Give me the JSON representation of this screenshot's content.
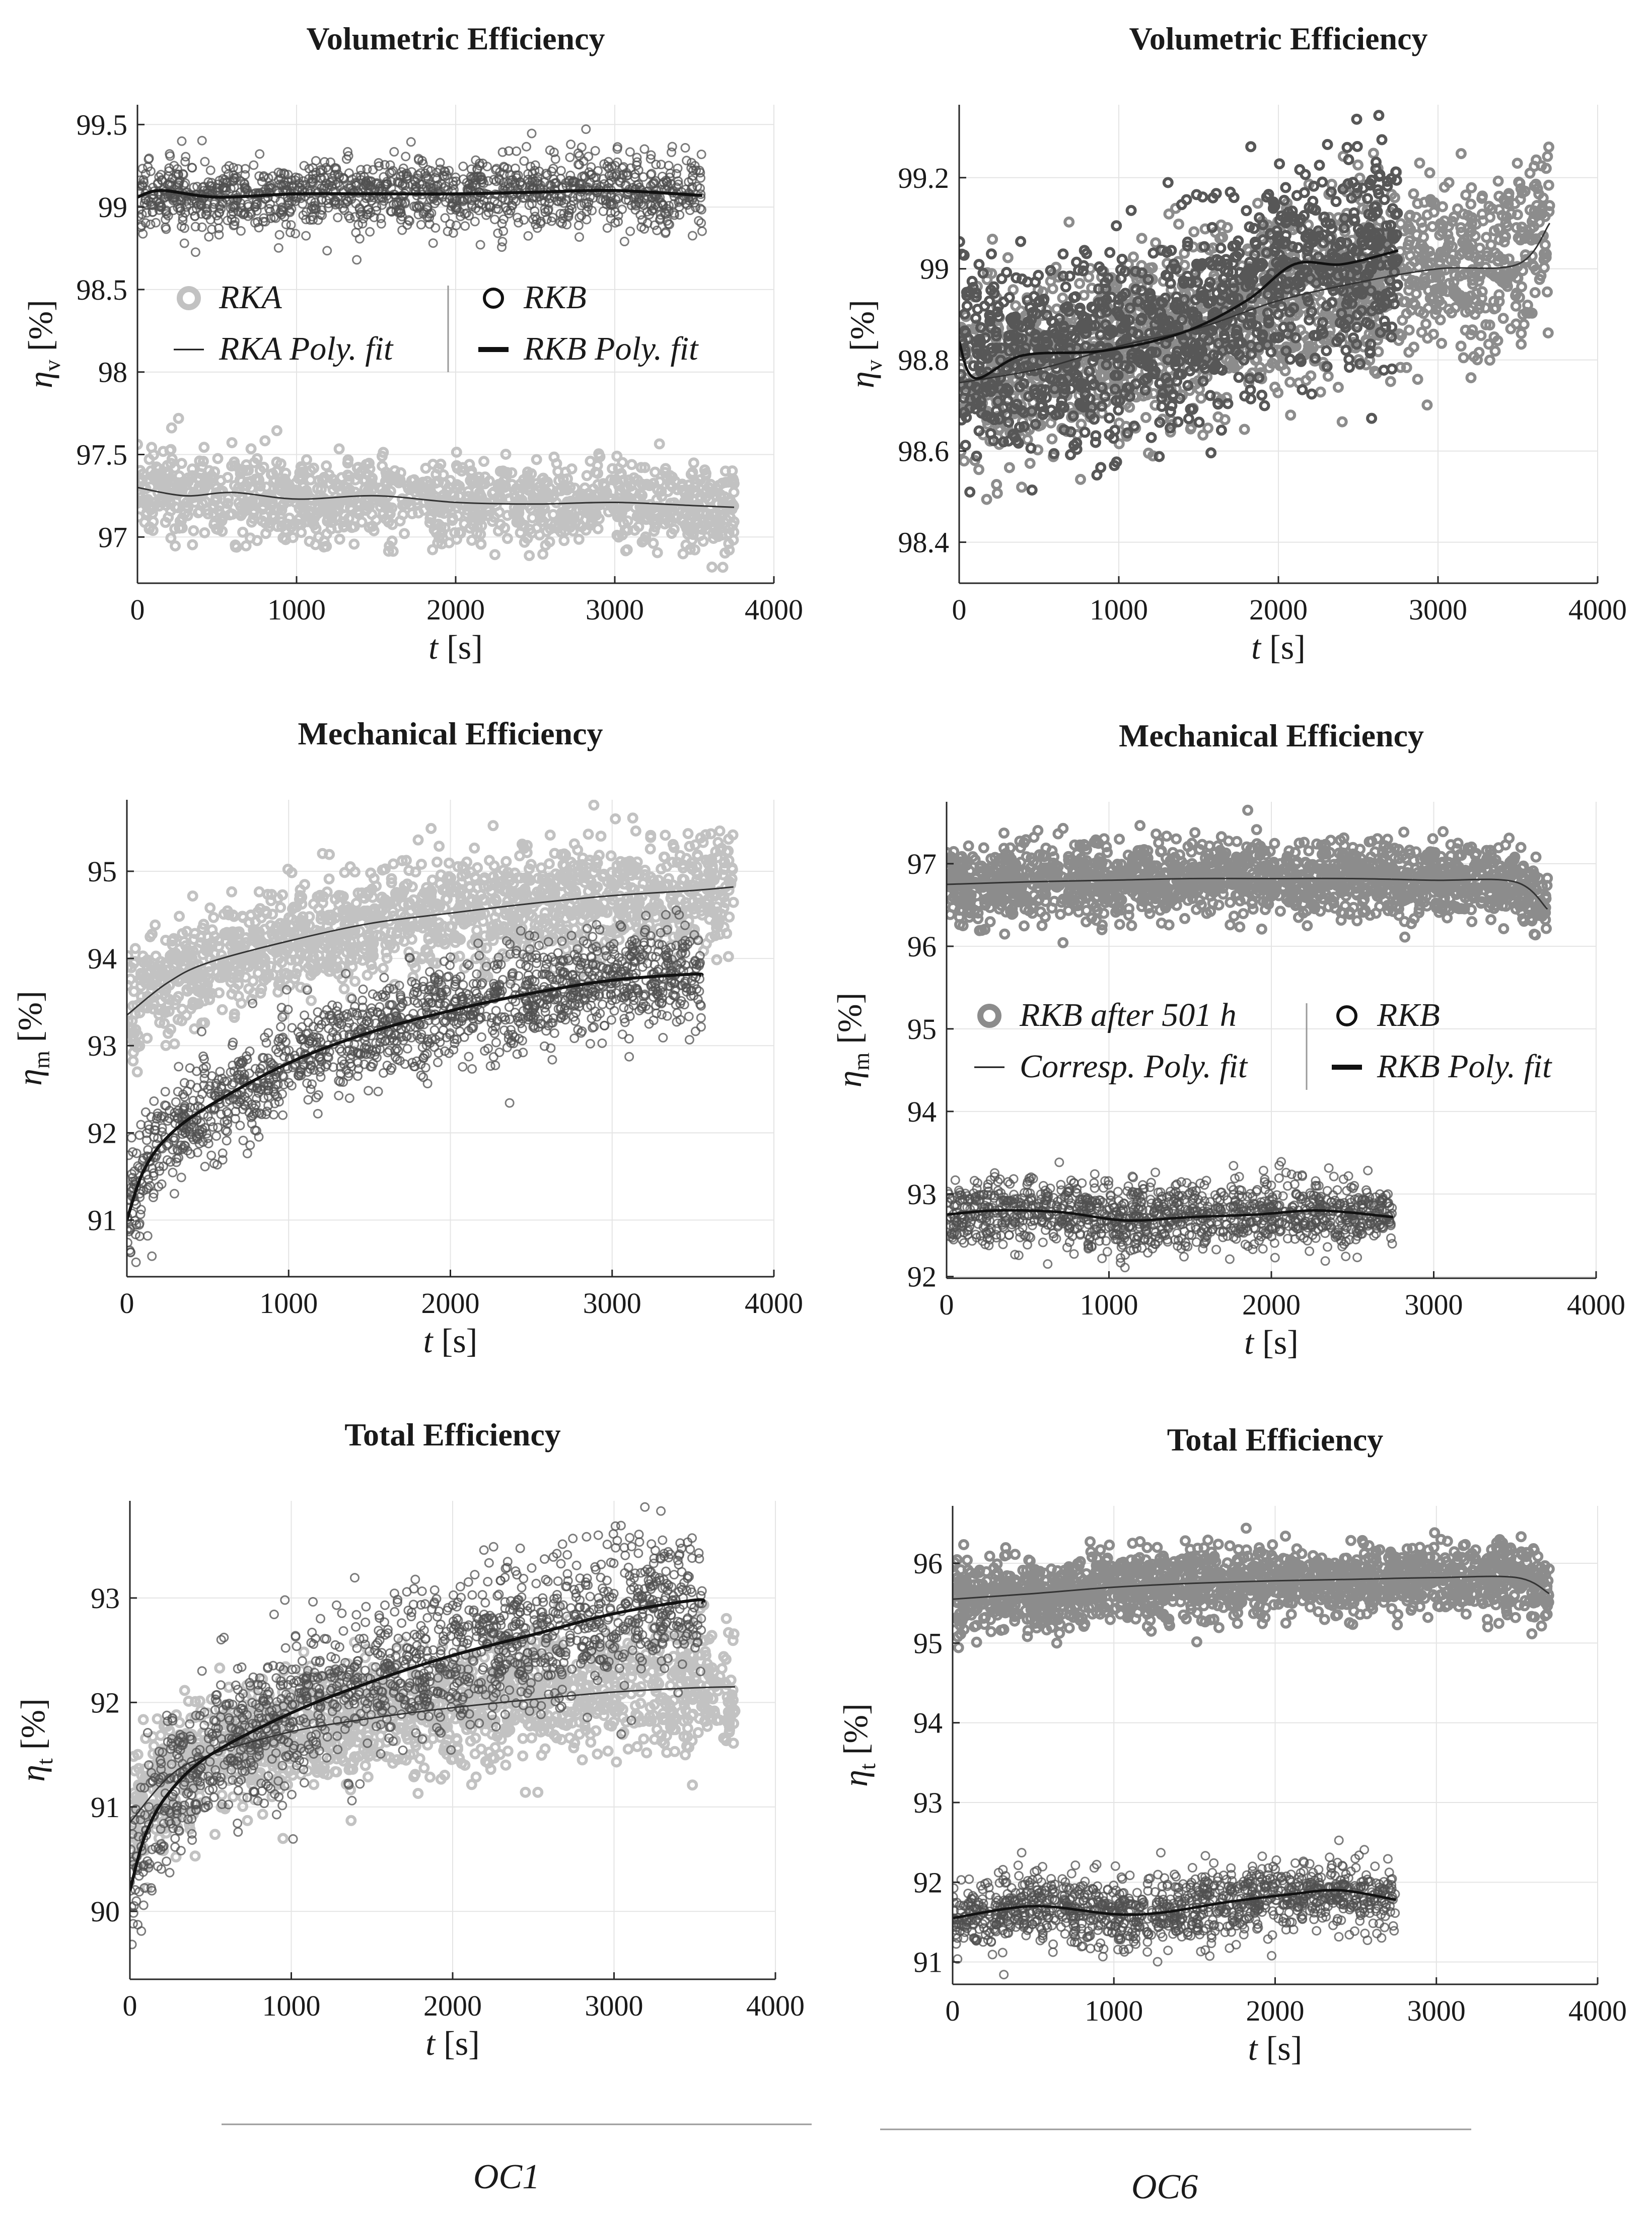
{
  "figure": {
    "columns": [
      {
        "label": "OC1"
      },
      {
        "label": "OC6"
      }
    ]
  },
  "chart_data": [
    {
      "id": "oc1_vol",
      "type": "scatter",
      "title": "Volumetric Efficiency",
      "xlabel_var": "t",
      "xlabel_unit": "[s]",
      "ylabel_var": "η",
      "ylabel_sub": "v",
      "ylabel_unit": "[%]",
      "xlim": [
        0,
        4000
      ],
      "ylim": [
        96.72,
        99.62
      ],
      "xticks": [
        0,
        1000,
        2000,
        3000,
        4000
      ],
      "yticks": [
        97,
        97.5,
        98,
        98.5,
        99,
        99.5
      ],
      "ytick_labels": [
        "97",
        "97.5",
        "98",
        "98.5",
        "99",
        "99.5"
      ],
      "legend": {
        "placement": "middle",
        "entries": [
          {
            "label": "RKA",
            "style": "scatter-light"
          },
          {
            "label": "RKB",
            "style": "scatter-open"
          },
          {
            "label": "RKA Poly. fit",
            "style": "line-thin"
          },
          {
            "label": "RKB Poly. fit",
            "style": "line-thick"
          }
        ]
      },
      "series": [
        {
          "name": "RKA",
          "kind": "scatter",
          "color": "#c2c2c2",
          "filled": true,
          "x_end": 3750,
          "spread": 0.13,
          "n": 1200,
          "seed": 11,
          "fit_x": [
            0,
            300,
            600,
            1000,
            1500,
            2000,
            2500,
            3000,
            3500,
            3750
          ],
          "fit_y": [
            97.3,
            97.25,
            97.27,
            97.23,
            97.25,
            97.21,
            97.2,
            97.21,
            97.19,
            97.18
          ]
        },
        {
          "name": "RKB",
          "kind": "scatter",
          "color": "#505050",
          "filled": false,
          "x_end": 3550,
          "spread": 0.11,
          "n": 1300,
          "seed": 23,
          "fit_x": [
            0,
            150,
            500,
            1000,
            1500,
            2000,
            2500,
            3000,
            3550
          ],
          "fit_y": [
            99.06,
            99.1,
            99.06,
            99.08,
            99.08,
            99.08,
            99.09,
            99.1,
            99.07
          ]
        },
        {
          "name": "RKA Poly. fit",
          "kind": "line",
          "color": "#333333",
          "width": 3,
          "x": [
            0,
            300,
            600,
            1000,
            1500,
            2000,
            2500,
            3000,
            3500,
            3750
          ],
          "y": [
            97.3,
            97.25,
            97.27,
            97.23,
            97.25,
            97.21,
            97.2,
            97.21,
            97.19,
            97.18
          ]
        },
        {
          "name": "RKB Poly. fit",
          "kind": "line",
          "color": "#111111",
          "width": 6,
          "x": [
            0,
            150,
            500,
            1000,
            1500,
            2000,
            2500,
            3000,
            3550
          ],
          "y": [
            99.06,
            99.1,
            99.06,
            99.08,
            99.08,
            99.08,
            99.09,
            99.1,
            99.07
          ]
        }
      ]
    },
    {
      "id": "oc6_vol",
      "type": "scatter",
      "title": "Volumetric Efficiency",
      "xlabel_var": "t",
      "xlabel_unit": "[s]",
      "ylabel_var": "η",
      "ylabel_sub": "v",
      "ylabel_unit": "[%]",
      "xlim": [
        0,
        4000
      ],
      "ylim": [
        98.31,
        99.36
      ],
      "xticks": [
        0,
        1000,
        2000,
        3000,
        4000
      ],
      "yticks": [
        98.4,
        98.6,
        98.8,
        99,
        99.2
      ],
      "ytick_labels": [
        "98.4",
        "98.6",
        "98.8",
        "99",
        "99.2"
      ],
      "legend": null,
      "series": [
        {
          "name": "RKB after 501 h",
          "kind": "scatter",
          "color": "#8c8c8c",
          "filled": true,
          "x_end": 3700,
          "spread": 0.1,
          "n": 1500,
          "seed": 37,
          "fit_x": [
            0,
            500,
            1000,
            1500,
            2000,
            2500,
            3000,
            3500,
            3700
          ],
          "fit_y": [
            98.75,
            98.78,
            98.83,
            98.87,
            98.93,
            98.97,
            99.0,
            99.01,
            99.1
          ]
        },
        {
          "name": "RKB",
          "kind": "scatter",
          "color": "#575757",
          "filled": true,
          "x_end": 2750,
          "spread": 0.11,
          "n": 1100,
          "seed": 41,
          "fit_x": [
            0,
            100,
            400,
            900,
            1400,
            1800,
            2100,
            2400,
            2750
          ],
          "fit_y": [
            98.84,
            98.76,
            98.81,
            98.82,
            98.86,
            98.93,
            99.01,
            99.01,
            99.04
          ]
        },
        {
          "name": "Corresp. Poly. fit",
          "kind": "line",
          "color": "#333333",
          "width": 3,
          "x": [
            0,
            500,
            1000,
            1500,
            2000,
            2500,
            3000,
            3500,
            3700
          ],
          "y": [
            98.75,
            98.78,
            98.83,
            98.87,
            98.93,
            98.97,
            99.0,
            99.01,
            99.1
          ]
        },
        {
          "name": "RKB Poly. fit",
          "kind": "line",
          "color": "#111111",
          "width": 5,
          "x": [
            0,
            100,
            400,
            900,
            1400,
            1800,
            2100,
            2400,
            2750
          ],
          "y": [
            98.84,
            98.76,
            98.81,
            98.82,
            98.86,
            98.93,
            99.01,
            99.01,
            99.04
          ]
        }
      ]
    },
    {
      "id": "oc1_mech",
      "type": "scatter",
      "title": "Mechanical Efficiency",
      "xlabel_var": "t",
      "xlabel_unit": "[s]",
      "ylabel_var": "η",
      "ylabel_sub": "m",
      "ylabel_unit": "[%]",
      "xlim": [
        0,
        4000
      ],
      "ylim": [
        90.35,
        95.82
      ],
      "xticks": [
        0,
        1000,
        2000,
        3000,
        4000
      ],
      "yticks": [
        91,
        92,
        93,
        94,
        95
      ],
      "ytick_labels": [
        "91",
        "92",
        "93",
        "94",
        "95"
      ],
      "legend": null,
      "series": [
        {
          "name": "RKA",
          "kind": "scatter",
          "color": "#c2c2c2",
          "filled": true,
          "x_end": 3750,
          "spread": 0.32,
          "n": 1500,
          "seed": 53,
          "fit_x": [
            0,
            250,
            500,
            1000,
            1500,
            2000,
            2500,
            3000,
            3500,
            3750
          ],
          "fit_y": [
            93.35,
            93.72,
            93.95,
            94.2,
            94.4,
            94.52,
            94.63,
            94.72,
            94.78,
            94.82
          ]
        },
        {
          "name": "RKB",
          "kind": "scatter",
          "color": "#505050",
          "filled": false,
          "x_end": 3550,
          "spread": 0.3,
          "n": 1500,
          "seed": 61,
          "fit_x": [
            0,
            100,
            250,
            500,
            1000,
            1500,
            2000,
            2500,
            3000,
            3500,
            3550
          ],
          "fit_y": [
            91.0,
            91.55,
            91.95,
            92.3,
            92.8,
            93.15,
            93.4,
            93.6,
            93.75,
            93.82,
            93.8
          ]
        },
        {
          "name": "RKA Poly. fit",
          "kind": "line",
          "color": "#333333",
          "width": 3,
          "x": [
            0,
            250,
            500,
            1000,
            1500,
            2000,
            2500,
            3000,
            3500,
            3750
          ],
          "y": [
            93.35,
            93.72,
            93.95,
            94.2,
            94.4,
            94.52,
            94.63,
            94.72,
            94.78,
            94.82
          ]
        },
        {
          "name": "RKB Poly. fit",
          "kind": "line",
          "color": "#111111",
          "width": 6,
          "x": [
            0,
            100,
            250,
            500,
            1000,
            1500,
            2000,
            2500,
            3000,
            3500,
            3550
          ],
          "y": [
            91.0,
            91.55,
            91.95,
            92.3,
            92.8,
            93.15,
            93.4,
            93.6,
            93.75,
            93.82,
            93.8
          ]
        }
      ]
    },
    {
      "id": "oc6_mech",
      "type": "scatter",
      "title": "Mechanical Efficiency",
      "xlabel_var": "t",
      "xlabel_unit": "[s]",
      "ylabel_var": "η",
      "ylabel_sub": "m",
      "ylabel_unit": "[%]",
      "xlim": [
        0,
        4000
      ],
      "ylim": [
        91.98,
        97.75
      ],
      "xticks": [
        0,
        1000,
        2000,
        3000,
        4000
      ],
      "yticks": [
        92,
        93,
        94,
        95,
        96,
        97
      ],
      "ytick_labels": [
        "92",
        "93",
        "94",
        "95",
        "96",
        "97"
      ],
      "legend": {
        "placement": "middle",
        "entries": [
          {
            "label": "RKB after 501 h",
            "style": "scatter-mid"
          },
          {
            "label": "RKB",
            "style": "scatter-open"
          },
          {
            "label": "Corresp. Poly. fit",
            "style": "line-thin"
          },
          {
            "label": "RKB Poly. fit",
            "style": "line-thick"
          }
        ]
      },
      "series": [
        {
          "name": "RKB after 501 h",
          "kind": "scatter",
          "color": "#8c8c8c",
          "filled": true,
          "x_end": 3700,
          "spread": 0.22,
          "n": 1600,
          "seed": 71,
          "fit_x": [
            0,
            500,
            1000,
            1500,
            2000,
            2500,
            3000,
            3500,
            3700
          ],
          "fit_y": [
            96.75,
            96.78,
            96.8,
            96.82,
            96.82,
            96.82,
            96.8,
            96.78,
            96.45
          ]
        },
        {
          "name": "RKB",
          "kind": "scatter",
          "color": "#505050",
          "filled": false,
          "x_end": 2750,
          "spread": 0.2,
          "n": 1200,
          "seed": 79,
          "fit_x": [
            0,
            300,
            700,
            1100,
            1500,
            1900,
            2300,
            2750
          ],
          "fit_y": [
            92.75,
            92.8,
            92.78,
            92.68,
            92.72,
            92.75,
            92.8,
            92.72
          ]
        },
        {
          "name": "Corresp. Poly. fit",
          "kind": "line",
          "color": "#333333",
          "width": 3,
          "x": [
            0,
            500,
            1000,
            1500,
            2000,
            2500,
            3000,
            3500,
            3700
          ],
          "y": [
            96.75,
            96.78,
            96.8,
            96.82,
            96.82,
            96.82,
            96.8,
            96.78,
            96.45
          ]
        },
        {
          "name": "RKB Poly. fit",
          "kind": "line",
          "color": "#111111",
          "width": 5,
          "x": [
            0,
            300,
            700,
            1100,
            1500,
            1900,
            2300,
            2750
          ],
          "y": [
            92.75,
            92.8,
            92.78,
            92.68,
            92.72,
            92.75,
            92.8,
            92.72
          ]
        }
      ]
    },
    {
      "id": "oc1_total",
      "type": "scatter",
      "title": "Total Efficiency",
      "xlabel_var": "t",
      "xlabel_unit": "[s]",
      "ylabel_var": "η",
      "ylabel_sub": "t",
      "ylabel_unit": "[%]",
      "xlim": [
        0,
        4000
      ],
      "ylim": [
        89.35,
        93.93
      ],
      "xticks": [
        0,
        1000,
        2000,
        3000,
        4000
      ],
      "yticks": [
        90,
        91,
        92,
        93
      ],
      "ytick_labels": [
        "90",
        "91",
        "92",
        "93"
      ],
      "legend": null,
      "series": [
        {
          "name": "RKA",
          "kind": "scatter",
          "color": "#c2c2c2",
          "filled": true,
          "x_end": 3750,
          "spread": 0.3,
          "n": 1500,
          "seed": 83,
          "fit_x": [
            0,
            250,
            500,
            1000,
            1500,
            2000,
            2500,
            3000,
            3500,
            3750
          ],
          "fit_y": [
            90.85,
            91.3,
            91.5,
            91.72,
            91.85,
            91.95,
            92.03,
            92.1,
            92.14,
            92.15
          ]
        },
        {
          "name": "RKB",
          "kind": "scatter",
          "color": "#505050",
          "filled": false,
          "x_end": 3550,
          "spread": 0.35,
          "n": 1500,
          "seed": 89,
          "fit_x": [
            0,
            100,
            250,
            500,
            1000,
            1500,
            2000,
            2500,
            3000,
            3500,
            3550
          ],
          "fit_y": [
            90.2,
            90.75,
            91.15,
            91.5,
            91.9,
            92.2,
            92.45,
            92.65,
            92.85,
            92.98,
            92.95
          ]
        },
        {
          "name": "RKA Poly. fit",
          "kind": "line",
          "color": "#333333",
          "width": 3,
          "x": [
            0,
            250,
            500,
            1000,
            1500,
            2000,
            2500,
            3000,
            3500,
            3750
          ],
          "y": [
            90.85,
            91.3,
            91.5,
            91.72,
            91.85,
            91.95,
            92.03,
            92.1,
            92.14,
            92.15
          ]
        },
        {
          "name": "RKB Poly. fit",
          "kind": "line",
          "color": "#111111",
          "width": 6,
          "x": [
            0,
            100,
            250,
            500,
            1000,
            1500,
            2000,
            2500,
            3000,
            3500,
            3550
          ],
          "y": [
            90.2,
            90.75,
            91.15,
            91.5,
            91.9,
            92.2,
            92.45,
            92.65,
            92.85,
            92.98,
            92.95
          ]
        }
      ]
    },
    {
      "id": "oc6_total",
      "type": "scatter",
      "title": "Total Efficiency",
      "xlabel_var": "t",
      "xlabel_unit": "[s]",
      "ylabel_var": "η",
      "ylabel_sub": "t",
      "ylabel_unit": "[%]",
      "xlim": [
        0,
        4000
      ],
      "ylim": [
        90.72,
        96.72
      ],
      "xticks": [
        0,
        1000,
        2000,
        3000,
        4000
      ],
      "yticks": [
        91,
        92,
        93,
        94,
        95,
        96
      ],
      "ytick_labels": [
        "91",
        "92",
        "93",
        "94",
        "95",
        "96"
      ],
      "legend": null,
      "series": [
        {
          "name": "RKB after 501 h",
          "kind": "scatter",
          "color": "#8c8c8c",
          "filled": true,
          "x_end": 3700,
          "spread": 0.22,
          "n": 1600,
          "seed": 97,
          "fit_x": [
            0,
            500,
            1000,
            1500,
            2000,
            2500,
            3000,
            3500,
            3700
          ],
          "fit_y": [
            95.55,
            95.62,
            95.7,
            95.75,
            95.78,
            95.8,
            95.82,
            95.82,
            95.62
          ]
        },
        {
          "name": "RKB",
          "kind": "scatter",
          "color": "#505050",
          "filled": false,
          "x_end": 2750,
          "spread": 0.22,
          "n": 1200,
          "seed": 101,
          "fit_x": [
            0,
            500,
            1000,
            1300,
            1700,
            2100,
            2400,
            2750
          ],
          "fit_y": [
            91.55,
            91.7,
            91.6,
            91.62,
            91.75,
            91.85,
            91.9,
            91.78
          ]
        },
        {
          "name": "Corresp. Poly. fit",
          "kind": "line",
          "color": "#333333",
          "width": 3,
          "x": [
            0,
            500,
            1000,
            1500,
            2000,
            2500,
            3000,
            3500,
            3700
          ],
          "y": [
            95.55,
            95.62,
            95.7,
            95.75,
            95.78,
            95.8,
            95.82,
            95.82,
            95.62
          ]
        },
        {
          "name": "RKB Poly. fit",
          "kind": "line",
          "color": "#111111",
          "width": 5,
          "x": [
            0,
            500,
            1000,
            1300,
            1700,
            2100,
            2400,
            2750
          ],
          "y": [
            91.55,
            91.7,
            91.6,
            91.62,
            91.75,
            91.85,
            91.9,
            91.78
          ]
        }
      ]
    }
  ]
}
